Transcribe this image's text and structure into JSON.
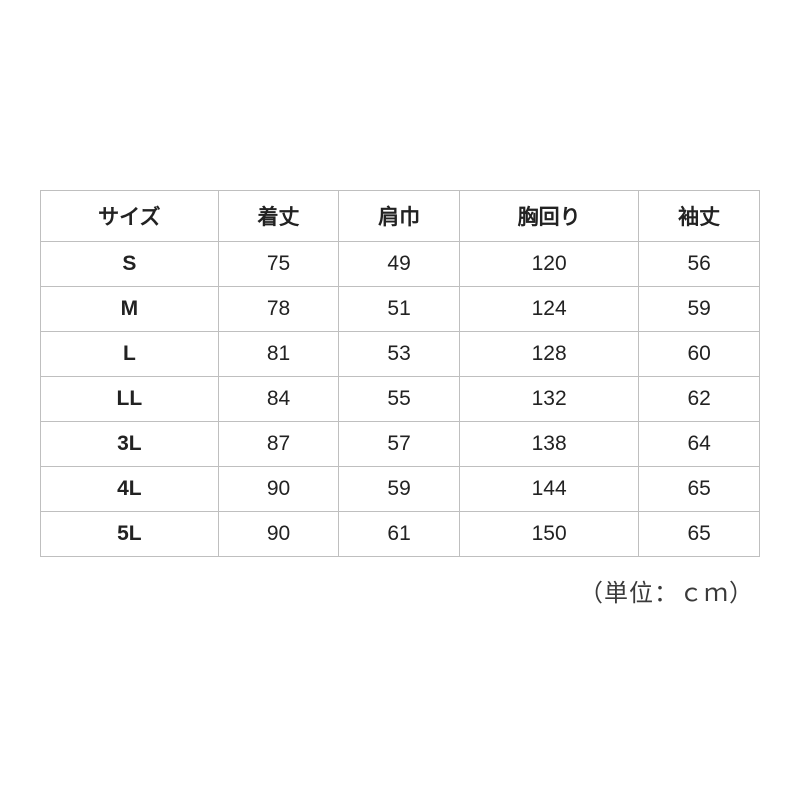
{
  "table": {
    "columns": [
      "サイズ",
      "着丈",
      "肩巾",
      "胸回り",
      "袖丈"
    ],
    "rows": [
      [
        "S",
        "75",
        "49",
        "120",
        "56"
      ],
      [
        "M",
        "78",
        "51",
        "124",
        "59"
      ],
      [
        "L",
        "81",
        "53",
        "128",
        "60"
      ],
      [
        "LL",
        "84",
        "55",
        "132",
        "62"
      ],
      [
        "3L",
        "87",
        "57",
        "138",
        "64"
      ],
      [
        "4L",
        "90",
        "59",
        "144",
        "65"
      ],
      [
        "5L",
        "90",
        "61",
        "150",
        "65"
      ]
    ],
    "header_fontsize": 21,
    "cell_fontsize": 21,
    "border_color": "#bfbfbf",
    "text_color": "#222222",
    "background_color": "#ffffff",
    "col_widths_pct": [
      20,
      20,
      20,
      20,
      20
    ]
  },
  "unit_note": "（単位：ｃｍ）"
}
